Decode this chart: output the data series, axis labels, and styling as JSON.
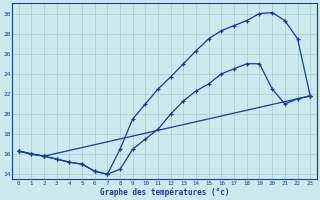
{
  "xlabel": "Graphe des températures (°c)",
  "x_ticks": [
    0,
    1,
    2,
    3,
    4,
    5,
    6,
    7,
    8,
    9,
    10,
    11,
    12,
    13,
    14,
    15,
    16,
    17,
    18,
    19,
    20,
    21,
    22,
    23
  ],
  "ylim": [
    13.5,
    31
  ],
  "xlim": [
    -0.5,
    23.5
  ],
  "yticks": [
    14,
    16,
    18,
    20,
    22,
    24,
    26,
    28,
    30
  ],
  "bg_color": "#cce9ee",
  "line_color": "#1a3a9c",
  "grid_color": "#aaccd4",
  "line1": {
    "x": [
      0,
      1,
      2,
      3,
      4,
      5,
      6,
      7,
      8,
      9,
      10,
      11,
      12,
      13,
      14,
      15,
      16,
      17,
      18,
      19,
      20,
      21,
      22,
      23
    ],
    "y": [
      16.3,
      16.0,
      15.8,
      15.5,
      15.2,
      15.0,
      14.3,
      14.0,
      16.5,
      19.5,
      21.0,
      22.5,
      23.7,
      25.0,
      26.3,
      27.5,
      28.3,
      28.8,
      29.3,
      30.0,
      30.1,
      29.3,
      27.5,
      21.8
    ]
  },
  "line2": {
    "x": [
      0,
      1,
      2,
      3,
      4,
      5,
      6,
      7,
      8,
      9,
      10,
      11,
      12,
      13,
      14,
      15,
      16,
      17,
      18,
      19,
      20,
      21,
      22,
      23
    ],
    "y": [
      16.3,
      16.0,
      15.8,
      15.5,
      15.2,
      15.0,
      14.3,
      14.0,
      14.5,
      16.5,
      17.5,
      18.5,
      20.0,
      21.3,
      22.3,
      23.0,
      24.0,
      24.5,
      25.0,
      25.0,
      22.5,
      21.0,
      21.5,
      21.8
    ]
  },
  "line3": {
    "x": [
      0,
      2,
      23
    ],
    "y": [
      16.3,
      15.8,
      21.8
    ]
  }
}
